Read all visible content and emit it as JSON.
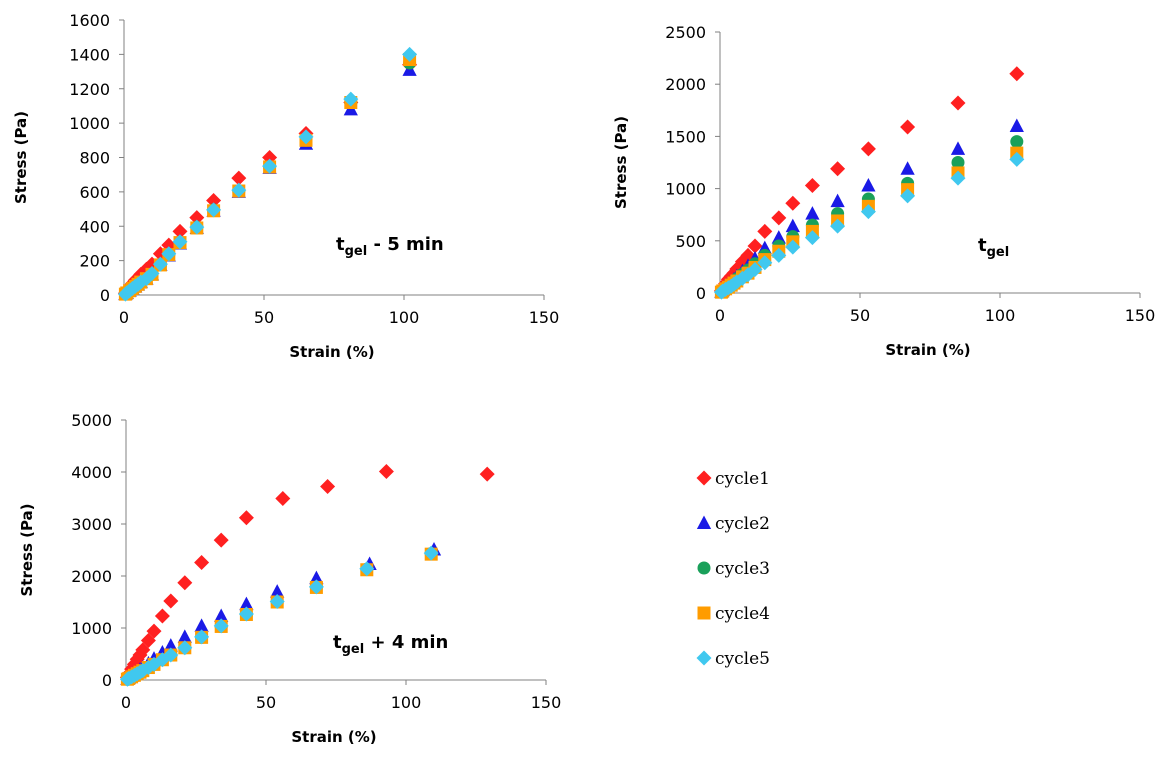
{
  "legend": [
    {
      "name": "cycle1",
      "color": "#ff2020",
      "marker": "diamond"
    },
    {
      "name": "cycle2",
      "color": "#1a1ae6",
      "marker": "triangle"
    },
    {
      "name": "cycle3",
      "color": "#1aa05a",
      "marker": "circle"
    },
    {
      "name": "cycle4",
      "color": "#ff9c00",
      "marker": "square"
    },
    {
      "name": "cycle5",
      "color": "#40c8ef",
      "marker": "diamond"
    }
  ],
  "chart_data": [
    {
      "type": "scatter",
      "title": "",
      "annotation": {
        "main": "t",
        "sub": "gel",
        "suffix": " - 5 min"
      },
      "xlabel": "Strain (%)",
      "ylabel": "Stress (Pa)",
      "xlim": [
        0,
        150
      ],
      "ylim": [
        0,
        1600
      ],
      "xticks": [
        "0",
        "50",
        "100",
        "150"
      ],
      "yticks": [
        "0",
        "200",
        "400",
        "600",
        "800",
        "1000",
        "1200",
        "1400",
        "1600"
      ],
      "x": [
        0.5,
        1,
        2,
        3,
        4,
        5,
        6,
        8,
        10,
        13,
        16,
        20,
        26,
        32,
        41,
        52,
        65,
        81,
        102
      ],
      "series": [
        {
          "name": "cycle1",
          "values": [
            10,
            25,
            45,
            65,
            85,
            100,
            120,
            150,
            180,
            240,
            290,
            370,
            450,
            550,
            680,
            800,
            940,
            1120,
            1340
          ]
        },
        {
          "name": "cycle2",
          "values": [
            5,
            12,
            25,
            38,
            50,
            62,
            75,
            95,
            120,
            175,
            230,
            300,
            390,
            490,
            600,
            740,
            880,
            1080,
            1310
          ]
        },
        {
          "name": "cycle3",
          "values": [
            5,
            12,
            25,
            38,
            50,
            62,
            75,
            95,
            120,
            175,
            235,
            305,
            395,
            495,
            605,
            745,
            900,
            1120,
            1350
          ]
        },
        {
          "name": "cycle4",
          "values": [
            5,
            12,
            25,
            38,
            50,
            62,
            75,
            95,
            120,
            175,
            235,
            305,
            390,
            490,
            605,
            745,
            900,
            1120,
            1370
          ]
        },
        {
          "name": "cycle5",
          "values": [
            5,
            12,
            25,
            38,
            50,
            62,
            75,
            95,
            125,
            180,
            240,
            310,
            395,
            495,
            610,
            750,
            920,
            1140,
            1400
          ]
        }
      ]
    },
    {
      "type": "scatter",
      "title": "",
      "annotation": {
        "main": "t",
        "sub": "gel",
        "suffix": ""
      },
      "xlabel": "Strain (%)",
      "ylabel": "Stress (Pa)",
      "xlim": [
        0,
        150
      ],
      "ylim": [
        0,
        2500
      ],
      "xticks": [
        "0",
        "50",
        "100",
        "150"
      ],
      "yticks": [
        "0",
        "500",
        "1000",
        "1500",
        "2000",
        "2500"
      ],
      "x": [
        0.5,
        1,
        2,
        3,
        4,
        5,
        6,
        8,
        10,
        12.5,
        16,
        21,
        26,
        33,
        42,
        53,
        67,
        85,
        106
      ],
      "series": [
        {
          "name": "cycle1",
          "values": [
            20,
            50,
            90,
            130,
            160,
            190,
            230,
            300,
            360,
            450,
            590,
            720,
            860,
            1030,
            1190,
            1380,
            1590,
            1820,
            2100
          ]
        },
        {
          "name": "cycle2",
          "values": [
            12,
            30,
            60,
            85,
            105,
            130,
            160,
            210,
            260,
            330,
            430,
            530,
            640,
            760,
            880,
            1030,
            1190,
            1380,
            1600
          ]
        },
        {
          "name": "cycle3",
          "values": [
            10,
            25,
            50,
            70,
            90,
            110,
            135,
            180,
            220,
            280,
            360,
            450,
            540,
            650,
            760,
            900,
            1050,
            1250,
            1450
          ]
        },
        {
          "name": "cycle4",
          "values": [
            8,
            20,
            40,
            55,
            75,
            95,
            115,
            155,
            190,
            245,
            320,
            400,
            490,
            590,
            690,
            830,
            990,
            1150,
            1340
          ]
        },
        {
          "name": "cycle5",
          "values": [
            8,
            18,
            35,
            50,
            65,
            85,
            105,
            140,
            175,
            225,
            290,
            360,
            440,
            530,
            640,
            780,
            930,
            1100,
            1280
          ]
        }
      ]
    },
    {
      "type": "scatter",
      "title": "",
      "annotation": {
        "main": "t",
        "sub": "gel",
        "suffix": " + 4 min"
      },
      "xlabel": "Strain (%)",
      "ylabel": "Stress (Pa)",
      "xlim": [
        0,
        150
      ],
      "ylim": [
        0,
        5000
      ],
      "xticks": [
        "0",
        "50",
        "100",
        "150"
      ],
      "yticks": [
        "0",
        "1000",
        "2000",
        "3000",
        "4000",
        "5000"
      ],
      "series": [
        {
          "name": "cycle1",
          "x": [
            0.5,
            1,
            2,
            3,
            4,
            5,
            6,
            8,
            10,
            13,
            16,
            21,
            27,
            34,
            43,
            56,
            72,
            93,
            129
          ],
          "values": [
            50,
            110,
            210,
            300,
            400,
            480,
            580,
            760,
            940,
            1230,
            1520,
            1870,
            2260,
            2690,
            3120,
            3490,
            3720,
            4010,
            3960
          ]
        },
        {
          "name": "cycle2",
          "x": [
            0.5,
            1,
            2,
            3,
            4,
            5,
            6,
            8,
            10,
            13,
            16,
            21,
            27,
            34,
            43,
            54,
            68,
            87,
            110
          ],
          "values": [
            20,
            40,
            80,
            120,
            160,
            200,
            240,
            320,
            410,
            530,
            660,
            830,
            1040,
            1230,
            1460,
            1700,
            1960,
            2230,
            2510
          ]
        },
        {
          "name": "cycle3",
          "x": [
            0.5,
            1,
            2,
            3,
            4,
            5,
            6,
            8,
            10,
            13,
            16,
            21,
            27,
            34,
            43,
            54,
            68,
            86,
            109
          ],
          "values": [
            15,
            30,
            60,
            90,
            120,
            150,
            180,
            240,
            300,
            390,
            480,
            620,
            820,
            1030,
            1260,
            1500,
            1790,
            2130,
            2430
          ]
        },
        {
          "name": "cycle4",
          "x": [
            0.5,
            1,
            2,
            3,
            4,
            5,
            6,
            8,
            10,
            13,
            16,
            21,
            27,
            34,
            43,
            54,
            68,
            86,
            109
          ],
          "values": [
            15,
            30,
            60,
            90,
            120,
            150,
            180,
            240,
            300,
            390,
            480,
            620,
            820,
            1030,
            1260,
            1500,
            1780,
            2120,
            2420
          ]
        },
        {
          "name": "cycle5",
          "x": [
            0.5,
            1,
            2,
            3,
            4,
            5,
            6,
            8,
            10,
            13,
            16,
            21,
            27,
            34,
            43,
            54,
            68,
            86,
            109
          ],
          "values": [
            15,
            30,
            60,
            90,
            120,
            150,
            180,
            240,
            300,
            390,
            480,
            620,
            830,
            1040,
            1270,
            1510,
            1790,
            2140,
            2440
          ]
        }
      ]
    }
  ]
}
